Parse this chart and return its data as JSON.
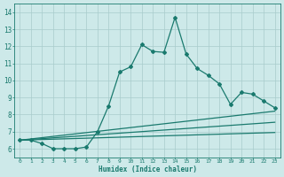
{
  "xlabel": "Humidex (Indice chaleur)",
  "ylabel": "",
  "bg_color": "#cde9e9",
  "grid_color": "#a8cccc",
  "line_color": "#1a7a6e",
  "xlim": [
    -0.5,
    23.5
  ],
  "ylim": [
    5.5,
    14.5
  ],
  "xticks": [
    0,
    1,
    2,
    3,
    4,
    5,
    6,
    7,
    8,
    9,
    10,
    11,
    12,
    13,
    14,
    15,
    16,
    17,
    18,
    19,
    20,
    21,
    22,
    23
  ],
  "yticks": [
    6,
    7,
    8,
    9,
    10,
    11,
    12,
    13,
    14
  ],
  "series": [
    {
      "x": [
        0,
        1,
        2,
        3,
        4,
        5,
        6,
        7,
        8,
        9,
        10,
        11,
        12,
        13,
        14,
        15,
        16,
        17,
        18,
        19,
        20,
        21,
        22,
        23
      ],
      "y": [
        6.5,
        6.5,
        6.3,
        6.0,
        6.0,
        6.0,
        6.1,
        7.0,
        8.5,
        10.5,
        10.8,
        12.1,
        11.7,
        11.65,
        13.7,
        11.55,
        10.7,
        10.3,
        9.8,
        8.6,
        9.3,
        9.2,
        8.8,
        8.4
      ],
      "marker": "D",
      "markersize": 2.0,
      "linewidth": 0.9
    },
    {
      "x": [
        0,
        23
      ],
      "y": [
        6.5,
        8.2
      ],
      "marker": null,
      "markersize": 0,
      "linewidth": 0.9
    },
    {
      "x": [
        0,
        23
      ],
      "y": [
        6.5,
        7.55
      ],
      "marker": null,
      "markersize": 0,
      "linewidth": 0.9
    },
    {
      "x": [
        0,
        23
      ],
      "y": [
        6.5,
        6.95
      ],
      "marker": null,
      "markersize": 0,
      "linewidth": 0.9
    }
  ]
}
